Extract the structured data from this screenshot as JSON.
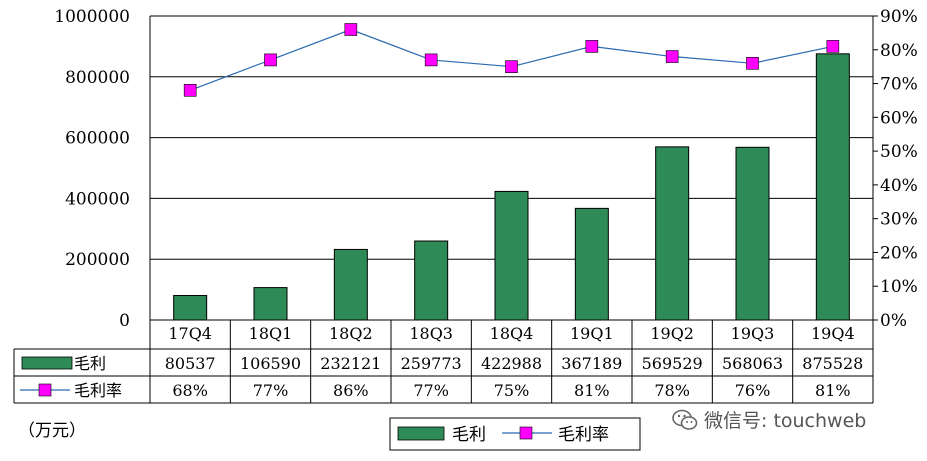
{
  "chart_data": {
    "type": "bar",
    "categories": [
      "17Q4",
      "18Q1",
      "18Q2",
      "18Q3",
      "18Q4",
      "19Q1",
      "19Q2",
      "19Q3",
      "19Q4"
    ],
    "series": [
      {
        "name": "毛利",
        "type": "bar",
        "axis": "left",
        "color": "#2e8b57",
        "values": [
          80537,
          106590,
          232121,
          259773,
          422988,
          367189,
          569529,
          568063,
          875528
        ],
        "labels": [
          "80537",
          "106590",
          "232121",
          "259773",
          "422988",
          "367189",
          "569529",
          "568063",
          "875528"
        ]
      },
      {
        "name": "毛利率",
        "type": "line",
        "axis": "right",
        "color": "#2a6ab0",
        "marker_color": "#ff00ff",
        "values": [
          68,
          77,
          86,
          77,
          75,
          81,
          78,
          76,
          81
        ],
        "labels": [
          "68%",
          "77%",
          "86%",
          "77%",
          "75%",
          "81%",
          "78%",
          "76%",
          "81%"
        ]
      }
    ],
    "y_left": {
      "min": 0,
      "max": 1000000,
      "ticks": [
        "0",
        "200000",
        "400000",
        "600000",
        "800000",
        "1000000"
      ]
    },
    "y_right": {
      "min": 0,
      "max": 90,
      "ticks": [
        "0%",
        "10%",
        "20%",
        "30%",
        "40%",
        "50%",
        "60%",
        "70%",
        "80%",
        "90%"
      ]
    },
    "grid": true,
    "legend": {
      "placement": "bottom",
      "items": [
        "毛利",
        "毛利率"
      ]
    },
    "unit_label": "（万元）",
    "data_table": true
  },
  "watermark": {
    "text": "微信号: touchweb",
    "icon": "wechat-icon"
  }
}
